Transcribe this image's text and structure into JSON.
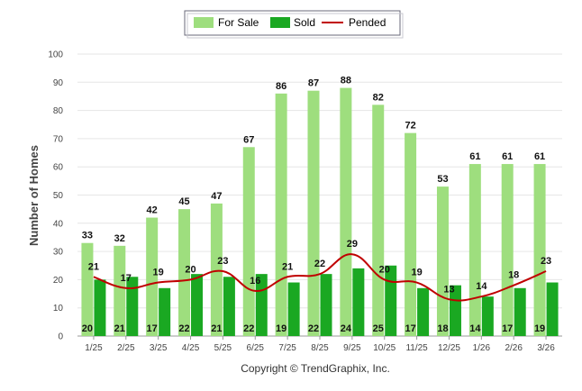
{
  "chart_data": {
    "type": "bar",
    "ylabel": "Number of Homes",
    "ylim": [
      0,
      100
    ],
    "yticks": [
      0,
      10,
      20,
      30,
      40,
      50,
      60,
      70,
      80,
      90,
      100
    ],
    "grid": true,
    "legend_position": "top-center",
    "categories": [
      "1/25",
      "2/25",
      "3/25",
      "4/25",
      "5/25",
      "6/25",
      "7/25",
      "8/25",
      "9/25",
      "10/25",
      "11/25",
      "12/25",
      "1/26",
      "2/26",
      "3/26"
    ],
    "series": [
      {
        "name": "For Sale",
        "type": "bar",
        "color": "#9ede7e",
        "values": [
          33,
          32,
          42,
          45,
          47,
          67,
          86,
          87,
          88,
          82,
          72,
          53,
          61,
          61,
          61
        ]
      },
      {
        "name": "Sold",
        "type": "bar",
        "color": "#1aa822",
        "values": [
          20,
          21,
          17,
          22,
          21,
          22,
          19,
          22,
          24,
          25,
          17,
          18,
          14,
          17,
          19
        ]
      },
      {
        "name": "Pended",
        "type": "line",
        "color": "#c00000",
        "values": [
          21,
          17,
          19,
          20,
          23,
          16,
          21,
          22,
          29,
          20,
          19,
          13,
          14,
          18,
          23
        ]
      }
    ]
  },
  "footer": {
    "copyright": "Copyright © TrendGraphix, Inc."
  }
}
